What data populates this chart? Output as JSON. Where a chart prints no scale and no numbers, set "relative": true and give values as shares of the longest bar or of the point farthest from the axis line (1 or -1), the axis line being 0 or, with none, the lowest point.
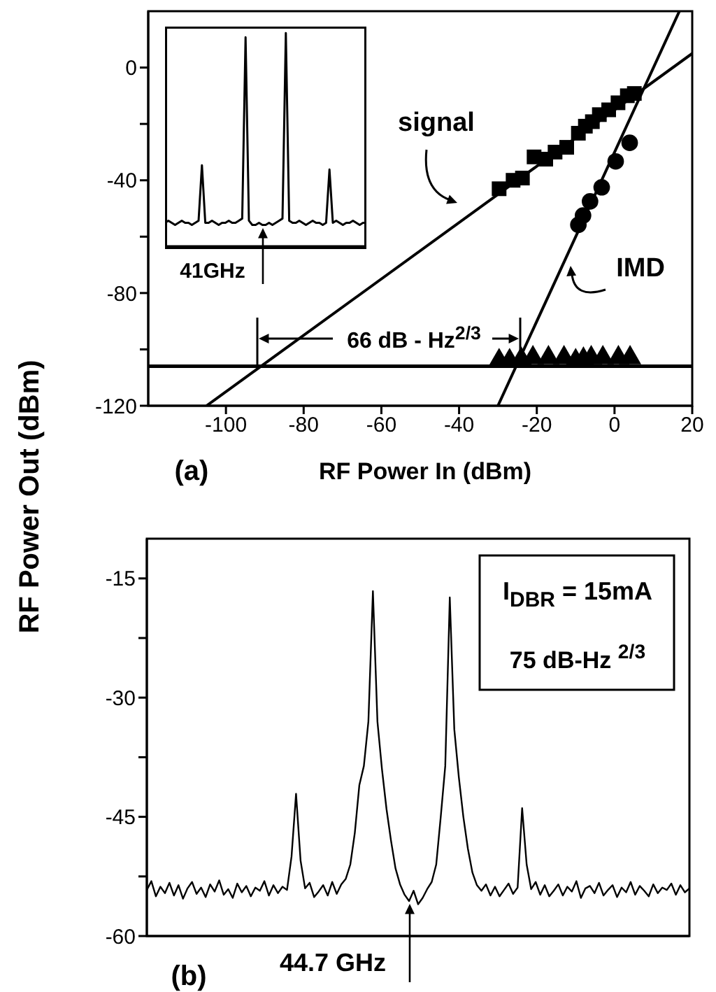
{
  "chart_data": [
    {
      "type": "scatter",
      "xlabel": "RF Power In (dBm)",
      "ylabel": "RF Power Out (dBm)",
      "xlim": [
        -120,
        20
      ],
      "ylim": [
        -120,
        20
      ],
      "xticks": [
        -100,
        -80,
        -60,
        -40,
        -20,
        0,
        20
      ],
      "yticks": [
        -120,
        {
          "value": -100,
          "label": null
        },
        -80,
        {
          "value": -60,
          "label": null
        },
        -40,
        {
          "value": -20,
          "label": null
        },
        0
      ],
      "series": [
        {
          "type": "line",
          "marker": "none",
          "color": "#000000",
          "x": [
            -105,
            20
          ],
          "values": [
            -120,
            5
          ]
        },
        {
          "type": "line",
          "marker": "none",
          "color": "#000000",
          "x": [
            -30,
            16.7
          ],
          "values": [
            -120,
            20
          ]
        },
        {
          "type": "scatter",
          "marker": "square",
          "color": "#000000",
          "x": [
            -29.7,
            -26.1,
            -23.7,
            -20.7,
            -17.7,
            -15.3,
            -12.3,
            -9.3,
            -7.5,
            -5.7,
            -3.9,
            -1.5,
            0.9,
            3.3,
            5.1
          ],
          "values": [
            -43,
            -40,
            -39.2,
            -31.7,
            -32.5,
            -30,
            -28.3,
            -23.3,
            -20.8,
            -19.2,
            -16.7,
            -15,
            -12.5,
            -10,
            -9.2
          ]
        },
        {
          "type": "scatter",
          "marker": "circle",
          "color": "#000000",
          "x": [
            -9.3,
            -8.1,
            -6.3,
            -3.3,
            0.3,
            3.9
          ],
          "values": [
            -55.8,
            -52.5,
            -47.5,
            -42.5,
            -33.3,
            -26.7
          ]
        },
        {
          "type": "scatter",
          "marker": "triangle",
          "color": "#000000",
          "x": [
            -29.7,
            -27,
            -24,
            -21,
            -17,
            -13,
            -10,
            -8,
            -6,
            -3,
            1,
            4
          ],
          "values": [
            -104,
            -104,
            -103.5,
            -103,
            -103,
            -103,
            -104,
            -103.5,
            -103,
            -103,
            -103,
            -103
          ]
        }
      ],
      "ref_lines": [
        {
          "axis": "y",
          "value": -106,
          "color": "#000000"
        }
      ],
      "annotations": [
        "signal",
        "IMD",
        "66 dB - Hz$^{2/3}$",
        "(a)"
      ]
    },
    {
      "type": "line",
      "relative": true,
      "color": "#000000",
      "categories": [
        null,
        null,
        null,
        null,
        null,
        null,
        null,
        null,
        null,
        null,
        null,
        null,
        null,
        null,
        null,
        null,
        null,
        null,
        null,
        null,
        null,
        null,
        null,
        null,
        null,
        null,
        null,
        null,
        null,
        null,
        null,
        null,
        null,
        null,
        null,
        null,
        null,
        null,
        null,
        null,
        null,
        null,
        null,
        null,
        null,
        null,
        null,
        null,
        null,
        null,
        null,
        null,
        null,
        null,
        null,
        null,
        null,
        null,
        null,
        null,
        null
      ],
      "values": [
        0.11,
        0.12,
        0.11,
        0.1,
        0.11,
        0.12,
        0.11,
        0.11,
        0.1,
        0.11,
        0.12,
        0.38,
        0.11,
        0.11,
        0.12,
        0.11,
        0.1,
        0.11,
        0.11,
        0.12,
        0.11,
        0.11,
        0.12,
        0.13,
        0.98,
        0.12,
        0.1,
        0.1,
        0.11,
        0.1,
        0.1,
        0.11,
        0.1,
        0.11,
        0.12,
        0.13,
        1,
        0.12,
        0.11,
        0.11,
        0.12,
        0.11,
        0.1,
        0.11,
        0.12,
        0.11,
        0.11,
        0.1,
        0.11,
        0.36,
        0.11,
        0.12,
        0.11,
        0.1,
        0.11,
        0.11,
        0.12,
        0.11,
        0.1,
        0.11,
        0.11
      ],
      "annotations": [
        "41GHz"
      ]
    },
    {
      "type": "line",
      "color": "#000000",
      "ylim": [
        -60,
        -10
      ],
      "yticks": [
        -60,
        {
          "value": -52.5,
          "label": null
        },
        -45,
        {
          "value": -37.5,
          "label": null
        },
        -30,
        {
          "value": -22.5,
          "label": null
        },
        -15
      ],
      "categories": [
        null,
        null,
        null,
        null,
        null,
        null,
        null,
        null,
        null,
        null,
        null,
        null,
        null,
        null,
        null,
        null,
        null,
        null,
        null,
        null,
        null,
        null,
        null,
        null,
        null,
        null,
        null,
        null,
        null,
        null,
        null,
        null,
        null,
        null,
        null,
        null,
        null,
        null,
        null,
        null,
        null,
        null,
        null,
        null,
        null,
        null,
        null,
        null,
        null,
        null,
        null,
        null,
        null,
        null,
        null,
        null,
        null,
        null,
        null,
        null,
        null,
        null,
        null,
        null,
        null,
        null,
        null,
        null,
        null,
        null,
        null,
        null,
        null,
        null,
        null,
        null,
        null,
        null,
        null,
        null,
        null,
        null,
        null,
        null,
        null,
        null,
        null,
        null,
        null,
        null,
        null,
        null,
        null,
        null,
        null,
        null,
        null,
        null,
        null,
        null,
        null,
        null,
        null,
        null,
        null,
        null,
        null,
        null,
        null,
        null,
        null,
        null,
        null,
        null,
        null,
        null,
        null,
        null,
        null,
        null,
        null
      ],
      "values": [
        -54.2,
        -53.1,
        -55.0,
        -53.8,
        -54.6,
        -53.3,
        -54.9,
        -53.6,
        -55.3,
        -54.0,
        -53.2,
        -54.7,
        -53.9,
        -55.1,
        -53.5,
        -54.4,
        -53.0,
        -54.8,
        -54.1,
        -55.2,
        -53.4,
        -54.5,
        -53.7,
        -55.0,
        -53.9,
        -54.3,
        -53.1,
        -54.9,
        -53.6,
        -54.6,
        -53.8,
        -54.2,
        -50,
        -42.1,
        -50.5,
        -54.0,
        -53.3,
        -55.1,
        -54.4,
        -53.6,
        -54.9,
        -53.2,
        -54.7,
        -53.5,
        -52.8,
        -51,
        -47,
        -41,
        -38.6,
        -33,
        -16.6,
        -33,
        -39,
        -44,
        -48,
        -51.5,
        -53.5,
        -54.8,
        -55.6,
        -54.3,
        -56.0,
        -55.2,
        -54.1,
        -53.2,
        -51,
        -45,
        -38.6,
        -17.4,
        -34,
        -40,
        -45,
        -49,
        -52,
        -53.6,
        -54.3,
        -53.5,
        -54.9,
        -53.8,
        -55.0,
        -54.2,
        -53.4,
        -54.7,
        -53.9,
        -43.9,
        -51,
        -54.1,
        -53.2,
        -54.8,
        -53.6,
        -55.0,
        -54.3,
        -53.5,
        -54.9,
        -53.8,
        -54.4,
        -53.1,
        -55.2,
        -54.0,
        -53.7,
        -54.6,
        -53.3,
        -54.9,
        -54.2,
        -53.6,
        -55.1,
        -53.9,
        -54.5,
        -53.2,
        -54.8,
        -53.7,
        -54.3,
        -55.0,
        -53.5,
        -54.6,
        -53.9,
        -54.2,
        -53.4,
        -54.8,
        -53.6,
        -54.5,
        -54.0
      ],
      "annotations": [
        "I$_{DBR}$ = 15mA",
        "75 dB-Hz $^{2/3}$",
        "44.7 GHz",
        "(b)"
      ]
    }
  ]
}
